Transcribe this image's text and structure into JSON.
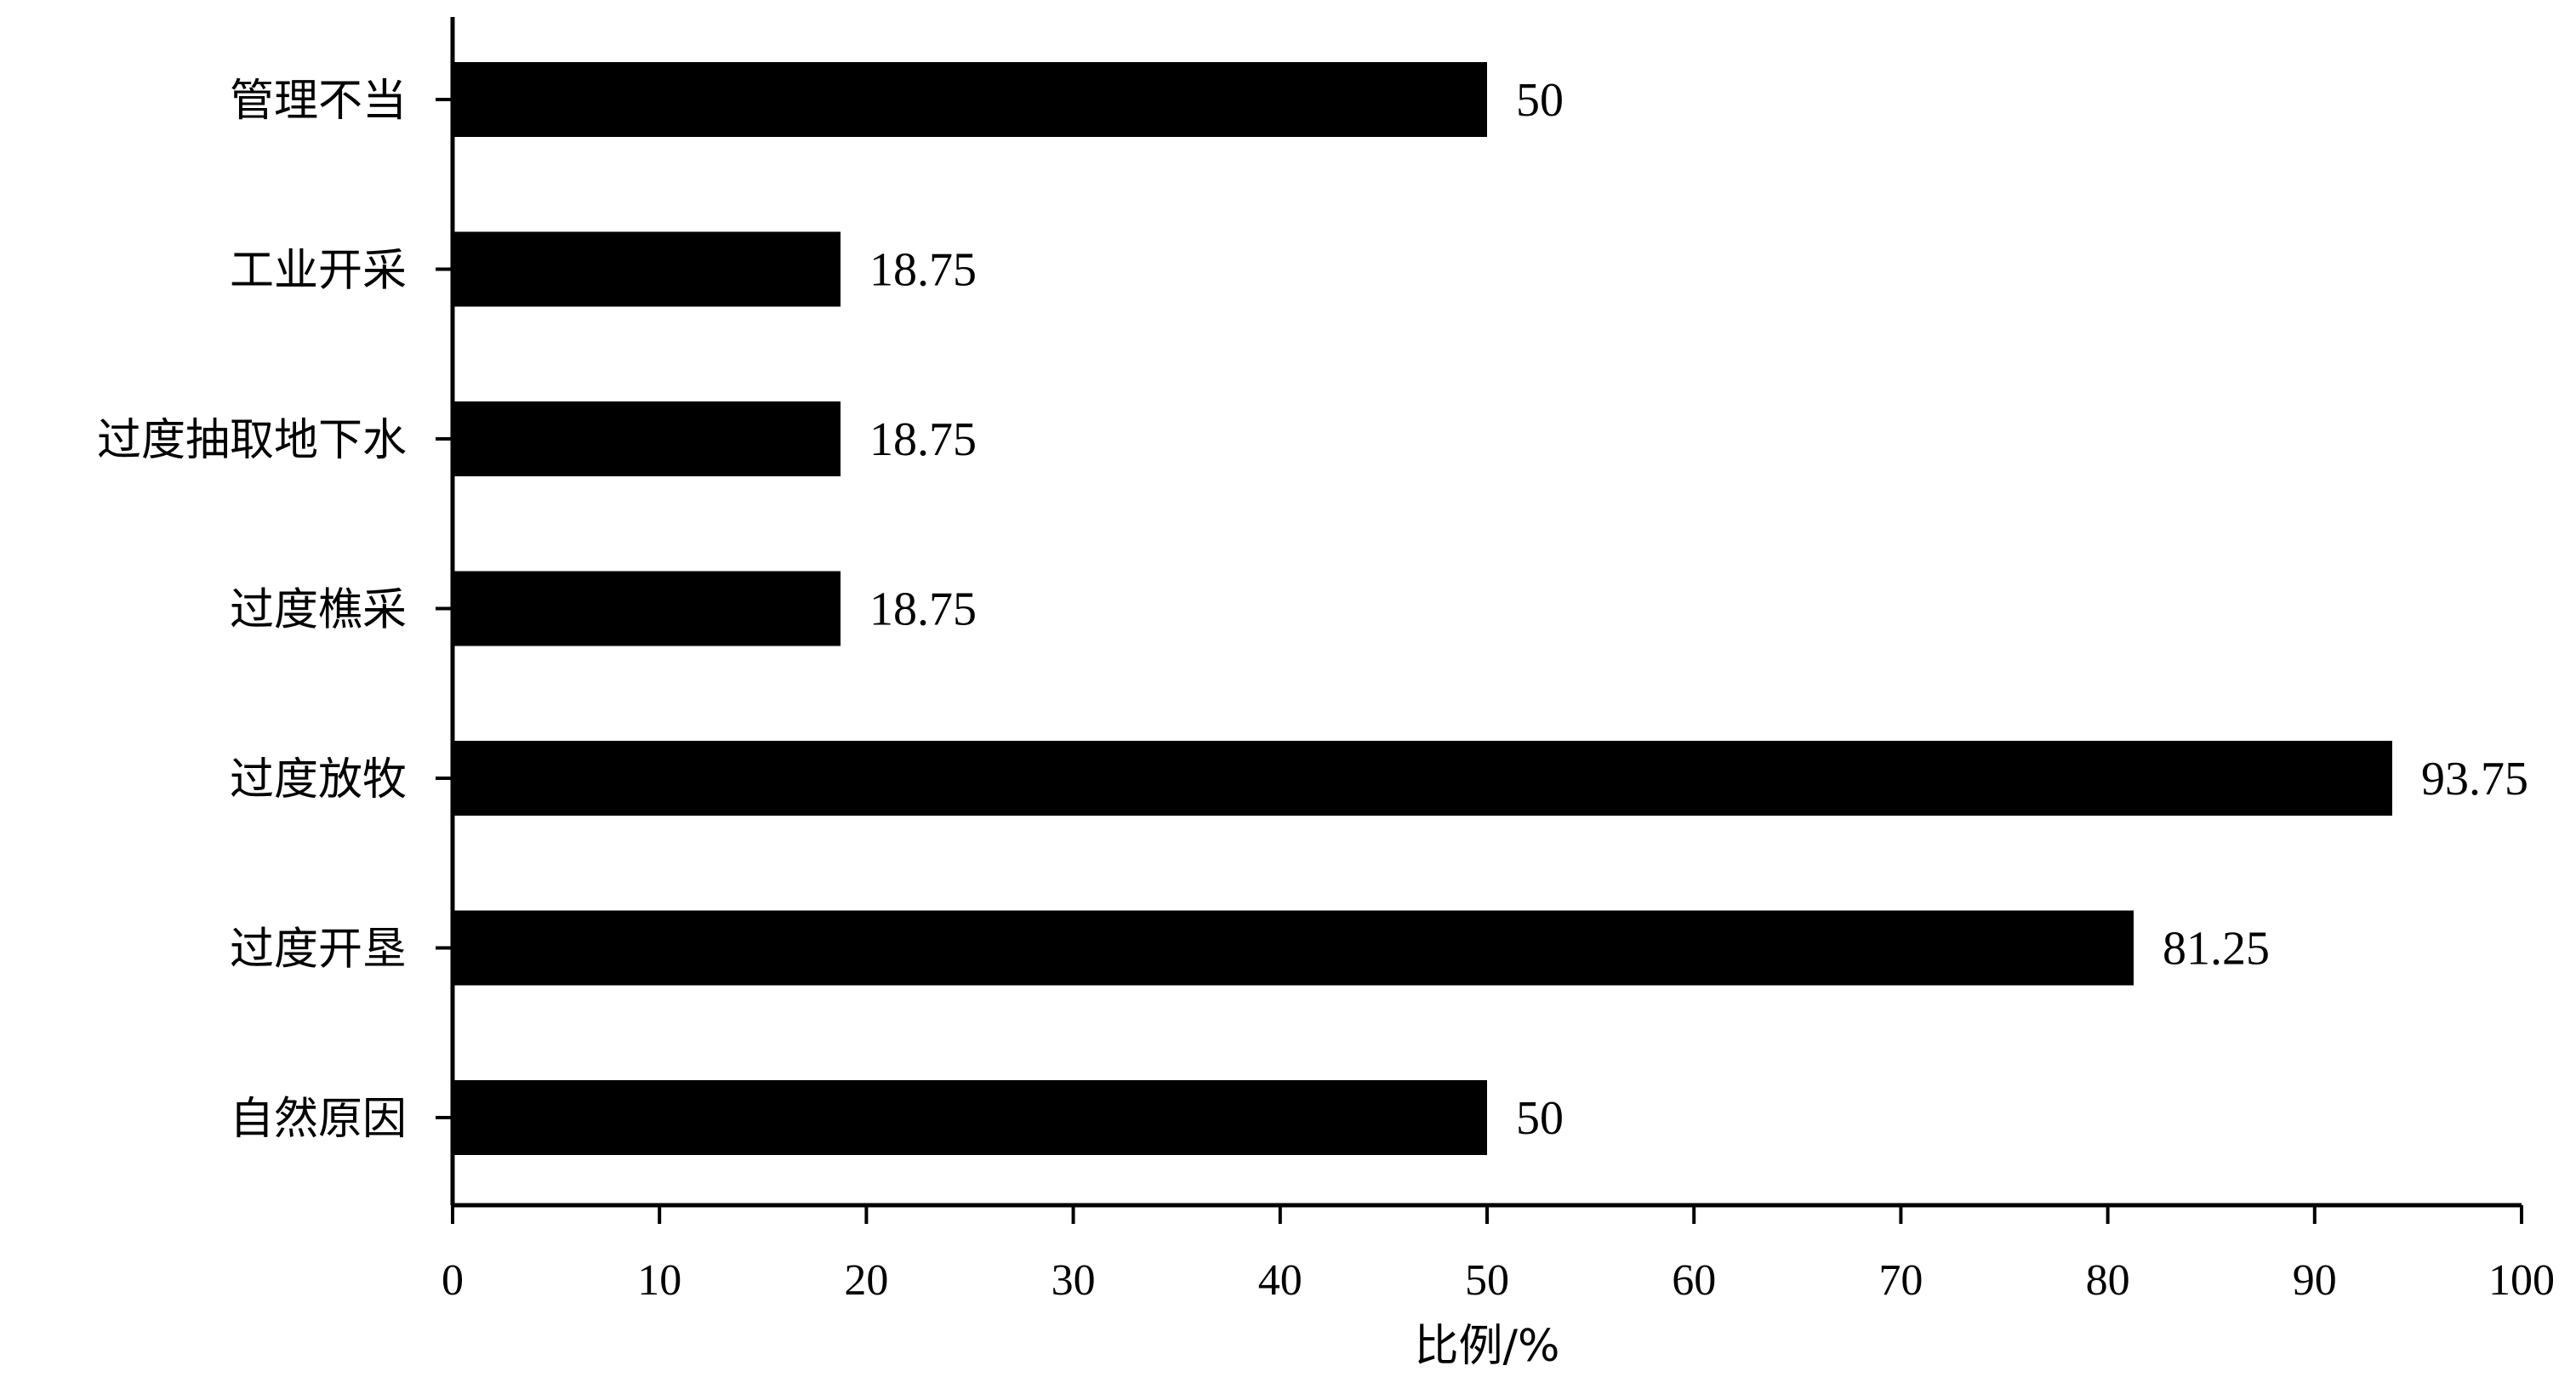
{
  "chart_data": {
    "type": "bar",
    "orientation": "horizontal",
    "categories": [
      "管理不当",
      "工业开采",
      "过度抽取地下水",
      "过度樵采",
      "过度放牧",
      "过度开垦",
      "自然原因"
    ],
    "values": [
      50,
      18.75,
      18.75,
      18.75,
      93.75,
      81.25,
      50
    ],
    "value_labels": [
      "50",
      "18.75",
      "18.75",
      "18.75",
      "93.75",
      "81.25",
      "50"
    ],
    "title": "",
    "xlabel": "比例/%",
    "ylabel": "",
    "xlim": [
      0,
      100
    ],
    "xticks": [
      0,
      10,
      20,
      30,
      40,
      50,
      60,
      70,
      80,
      90,
      100
    ],
    "xtick_labels": [
      "0",
      "10",
      "20",
      "30",
      "40",
      "50",
      "60",
      "70",
      "80",
      "90",
      "100"
    ],
    "grid": false,
    "legend": "none",
    "bar_color": "#000000"
  }
}
